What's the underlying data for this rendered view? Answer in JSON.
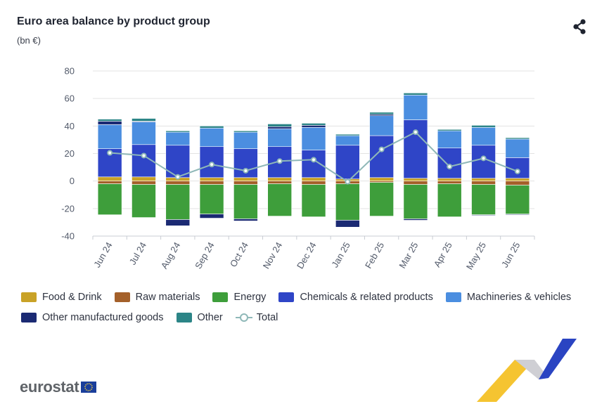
{
  "header": {
    "title": "Euro area balance by product group",
    "subtitle": "(bn €)"
  },
  "icons": {
    "share": "share-icon",
    "flag": "eu-flag-icon"
  },
  "branding": {
    "logo_text": "eurostat"
  },
  "colors": {
    "food": "#c9a227",
    "raw": "#a4602a",
    "energy": "#3e9e3b",
    "chemicals": "#2f45c7",
    "machineries": "#4b8ee0",
    "other_manufactured": "#1b2a73",
    "other": "#2c8587",
    "total": "#8fb8b8",
    "grid": "#e3e3e3"
  },
  "chart_data": {
    "type": "bar",
    "stacked": true,
    "title": "Euro area balance by product group",
    "subtitle": "(bn €)",
    "categories": [
      "Jun 24",
      "Jul 24",
      "Aug 24",
      "Sep 24",
      "Oct 24",
      "Nov 24",
      "Dec 24",
      "Jan 25",
      "Feb 25",
      "Mar 25",
      "Apr 25",
      "May 25",
      "Jun 25"
    ],
    "y_ticks": [
      "80",
      "60",
      "40",
      "20",
      "0",
      "-20",
      "-40"
    ],
    "ylim": [
      -40,
      80
    ],
    "grid": true,
    "legend_position": "bottom",
    "series": [
      {
        "name": "Food & Drink",
        "key": "food",
        "values": [
          3,
          3,
          2.5,
          2.5,
          2.5,
          2.5,
          2.5,
          1.5,
          2.5,
          2,
          2,
          2,
          2
        ]
      },
      {
        "name": "Raw materials",
        "key": "raw",
        "values": [
          -2,
          -2.5,
          -2.5,
          -2.5,
          -2.5,
          -2,
          -2.5,
          -2,
          -1,
          -2.5,
          -2,
          -2.5,
          -3
        ]
      },
      {
        "name": "Energy",
        "key": "energy",
        "values": [
          -22.5,
          -24,
          -25.5,
          -21.5,
          -25,
          -23.5,
          -23.5,
          -26.5,
          -24.5,
          -25,
          -24,
          -22,
          -21
        ]
      },
      {
        "name": "Chemicals & related products",
        "key": "chemicals",
        "values": [
          20.5,
          23.5,
          23.5,
          22.5,
          21,
          22.5,
          20,
          24.5,
          30.5,
          42.5,
          22,
          24,
          15
        ]
      },
      {
        "name": "Machineries & vehicles",
        "key": "machineries",
        "values": [
          17.5,
          16.5,
          9.5,
          13.5,
          12,
          13,
          16.5,
          7,
          14.5,
          18,
          12.5,
          13,
          13.5
        ]
      },
      {
        "name": "Other manufactured goods",
        "key": "other_manufactured",
        "values": [
          2.5,
          0.5,
          -4.5,
          -3,
          -1.5,
          1.5,
          1.5,
          -5,
          1,
          -1,
          0,
          -0.5,
          -0.5
        ]
      },
      {
        "name": "Other",
        "key": "other",
        "values": [
          1.5,
          2,
          1,
          1.5,
          1,
          2,
          1.5,
          1,
          1.5,
          1.5,
          1,
          1.5,
          1
        ]
      },
      {
        "name": "Total",
        "key": "total",
        "type": "line",
        "values": [
          20.5,
          18.5,
          3,
          12,
          7.5,
          14.5,
          15.5,
          -0.5,
          23,
          35.5,
          10.5,
          16.5,
          7
        ]
      }
    ]
  },
  "legend_rows": [
    [
      {
        "name": "Food & Drink",
        "key": "food"
      },
      {
        "name": "Raw materials",
        "key": "raw"
      },
      {
        "name": "Energy",
        "key": "energy"
      },
      {
        "name": "Chemicals & related products",
        "key": "chemicals"
      },
      {
        "name": "Machineries & vehicles",
        "key": "machineries"
      }
    ],
    [
      {
        "name": "Other manufactured goods",
        "key": "other_manufactured"
      },
      {
        "name": "Other",
        "key": "other"
      },
      {
        "name": "Total",
        "key": "total",
        "line": true
      }
    ]
  ]
}
